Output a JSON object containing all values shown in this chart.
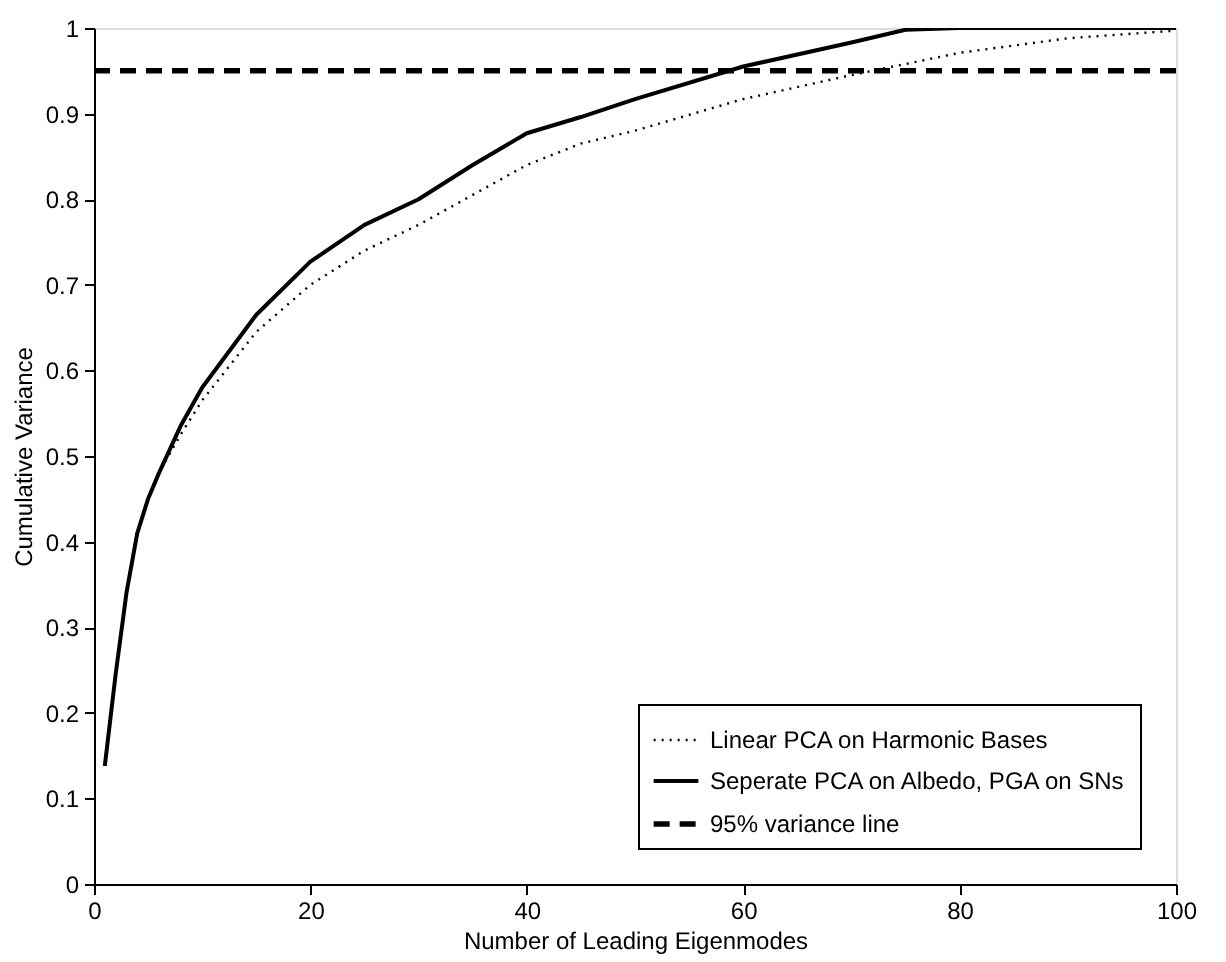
{
  "chart_data": {
    "type": "line",
    "xlabel": "Number of Leading Eigenmodes",
    "ylabel": "Cumulative Variance",
    "xlim": [
      0,
      100
    ],
    "xticks": [
      0,
      20,
      40,
      60,
      80,
      100
    ],
    "ylim": [
      0,
      1
    ],
    "yticks": [
      0,
      0.1,
      0.2,
      0.3,
      0.4,
      0.5,
      0.6,
      0.7,
      0.8,
      0.9,
      1
    ],
    "grid": false,
    "legend": "bottom right",
    "series": [
      {
        "name": "Linear PCA on Harmonic Bases",
        "color": "#000000",
        "line_style": "dotted",
        "x": [
          1,
          2,
          3,
          4,
          5,
          6,
          8,
          10,
          15,
          20,
          25,
          30,
          35,
          40,
          45,
          50,
          60,
          70,
          80,
          90,
          100
        ],
        "values": [
          0.138,
          0.245,
          0.34,
          0.41,
          0.45,
          0.48,
          0.525,
          0.565,
          0.645,
          0.7,
          0.74,
          0.77,
          0.805,
          0.84,
          0.865,
          0.88,
          0.917,
          0.945,
          0.971,
          0.988,
          0.997
        ]
      },
      {
        "name": "Seperate PCA on Albedo, PGA on SNs",
        "color": "#000000",
        "line_style": "solid",
        "x": [
          1,
          2,
          3,
          4,
          5,
          6,
          8,
          10,
          15,
          20,
          25,
          30,
          35,
          40,
          45,
          50,
          60,
          70,
          75,
          80,
          90,
          100
        ],
        "values": [
          0.138,
          0.245,
          0.34,
          0.41,
          0.45,
          0.48,
          0.535,
          0.58,
          0.665,
          0.727,
          0.77,
          0.8,
          0.84,
          0.877,
          0.896,
          0.917,
          0.955,
          0.983,
          0.998,
          1.0,
          1.0,
          1.0
        ]
      }
    ],
    "ref_lines": [
      {
        "axis": "y",
        "value": 0.95,
        "label": "95% variance line",
        "color": "#000000",
        "line_style": "dashed"
      }
    ]
  }
}
